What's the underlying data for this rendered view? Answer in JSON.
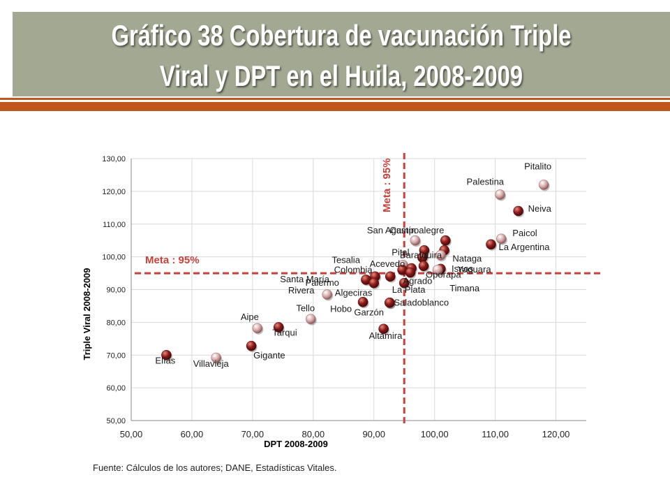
{
  "header": {
    "title": "Gráfico 38 Cobertura de vacunación Triple Viral y DPT en el Huila, 2008-2009"
  },
  "colors": {
    "header_bg": "#a3a892",
    "accent_rule": "#c0581e",
    "dark_point": "#8b1a1a",
    "light_point": "#d4a5a5",
    "meta_line": "#c9403a"
  },
  "chart_data": {
    "type": "scatter",
    "xlabel": "DPT 2008-2009",
    "ylabel": "Triple Viral  2008-2009",
    "xlim": [
      50,
      125
    ],
    "ylim": [
      50,
      130
    ],
    "xticks": [
      50,
      60,
      70,
      80,
      90,
      100,
      110,
      120
    ],
    "yticks": [
      50,
      60,
      70,
      80,
      90,
      100,
      110,
      120,
      130
    ],
    "xtick_labels": [
      "50,00",
      "60,00",
      "70,00",
      "80,00",
      "90,00",
      "100,00",
      "110,00",
      "120,00"
    ],
    "ytick_labels": [
      "50,00",
      "60,00",
      "70,00",
      "80,00",
      "90,00",
      "100,00",
      "110,00",
      "120,00",
      "130,00"
    ],
    "grid": true,
    "reference_lines": [
      {
        "label": "Meta : 95%",
        "axis": "y",
        "value": 95
      },
      {
        "label": "Meta : 95%",
        "axis": "x",
        "value": 95
      }
    ],
    "points": [
      {
        "label": "Pitalito",
        "x": 118,
        "y": 122,
        "tone": "light"
      },
      {
        "label": "Palestina",
        "x": 110.8,
        "y": 119,
        "tone": "light"
      },
      {
        "label": "Neiva",
        "x": 113.8,
        "y": 114,
        "tone": "dark"
      },
      {
        "label": "Paicol",
        "x": 111,
        "y": 105.5,
        "tone": "light"
      },
      {
        "label": "La Argentina",
        "x": 109.3,
        "y": 103.8,
        "tone": "dark"
      },
      {
        "label": "San Agustín",
        "x": 96.8,
        "y": 105,
        "tone": "light"
      },
      {
        "label": "Campoalegre",
        "x": 101.8,
        "y": 105,
        "tone": "dark"
      },
      {
        "label": "Baraya",
        "x": 98.3,
        "y": 102,
        "tone": "dark"
      },
      {
        "label": "Iquira",
        "x": 101.6,
        "y": 102,
        "tone": "dark"
      },
      {
        "label": "Nataga",
        "x": 101,
        "y": 100.5,
        "tone": "light"
      },
      {
        "label": "Pital",
        "x": 98,
        "y": 99.8,
        "tone": "dark"
      },
      {
        "label": "Isnos",
        "x": 98.2,
        "y": 97.2,
        "tone": "dark"
      },
      {
        "label": "Tesalia",
        "x": 94.8,
        "y": 97.5,
        "tone": "light"
      },
      {
        "label": "Acevedo",
        "x": 96.2,
        "y": 96.5,
        "tone": "dark"
      },
      {
        "label": "Yaguara",
        "x": 101,
        "y": 96.3,
        "tone": "dark"
      },
      {
        "label": "Colombia",
        "x": 94.7,
        "y": 96,
        "tone": "dark"
      },
      {
        "label": "Oporapa",
        "x": 100.5,
        "y": 96,
        "tone": "light"
      },
      {
        "label": "Rivera",
        "x": 96,
        "y": 95.2,
        "tone": "dark"
      },
      {
        "label": "Santa María",
        "x": 92.7,
        "y": 94,
        "tone": "dark"
      },
      {
        "label": "Palermo",
        "x": 90.2,
        "y": 94,
        "tone": "dark"
      },
      {
        "label": "Agrado",
        "x": 88.7,
        "y": 93,
        "tone": "dark"
      },
      {
        "label": "La Plata",
        "x": 90,
        "y": 92,
        "tone": "dark"
      },
      {
        "label": "Timana",
        "x": 95,
        "y": 92,
        "tone": "dark"
      },
      {
        "label": "Algeciras",
        "x": 82.3,
        "y": 88.5,
        "tone": "light"
      },
      {
        "label": "Hobo",
        "x": 88.2,
        "y": 86.2,
        "tone": "dark"
      },
      {
        "label": "Garzón",
        "x": 92.6,
        "y": 86,
        "tone": "dark"
      },
      {
        "label": "Saladoblanco",
        "x": 92.6,
        "y": 86,
        "tone": "dark"
      },
      {
        "label": "Tello",
        "x": 79.6,
        "y": 81,
        "tone": "light"
      },
      {
        "label": "Aipe",
        "x": 70.8,
        "y": 78.2,
        "tone": "light"
      },
      {
        "label": "Tarqui",
        "x": 74.3,
        "y": 78.5,
        "tone": "dark"
      },
      {
        "label": "Altamira",
        "x": 91.6,
        "y": 78,
        "tone": "dark"
      },
      {
        "label": "Gigante",
        "x": 69.8,
        "y": 72.8,
        "tone": "dark"
      },
      {
        "label": "Elías",
        "x": 55.8,
        "y": 70,
        "tone": "dark"
      },
      {
        "label": "Villavieja",
        "x": 64,
        "y": 69.2,
        "tone": "light"
      }
    ]
  },
  "footer": {
    "source": "Fuente: Cálculos de los autores; DANE, Estadísticas Vitales."
  }
}
